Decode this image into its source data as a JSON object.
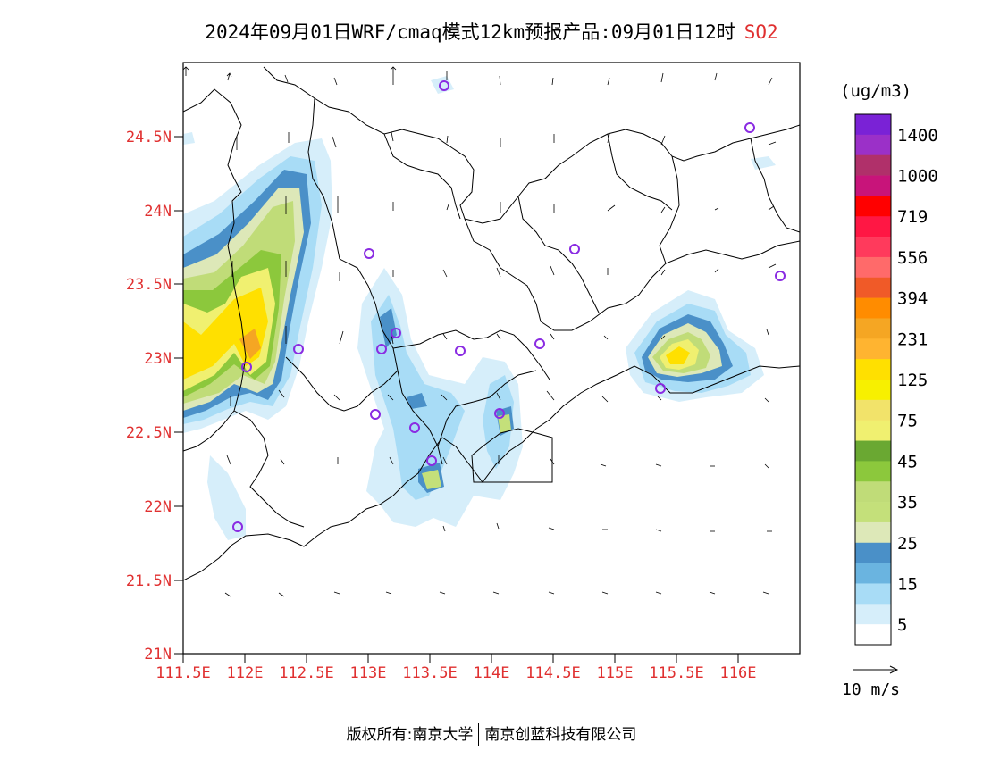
{
  "title": {
    "main": "2024年09月01日WRF/cmaq模式12km预报产品:09月01日12时",
    "pollutant": "SO2"
  },
  "map": {
    "lat_ticks": [
      "24.5N",
      "24N",
      "23.5N",
      "23N",
      "22.5N",
      "22N",
      "21.5N",
      "21N"
    ],
    "lon_ticks": [
      "111.5E",
      "112E",
      "112.5E",
      "113E",
      "113.5E",
      "114E",
      "114.5E",
      "115E",
      "115.5E",
      "116E"
    ]
  },
  "legend": {
    "unit": "(ug/m3)",
    "labels": [
      "1400",
      "1000",
      "719",
      "556",
      "394",
      "231",
      "125",
      "75",
      "45",
      "35",
      "25",
      "15",
      "5"
    ],
    "colors": [
      "#7a22d6",
      "#9b30c8",
      "#b0306a",
      "#c8147a",
      "#ff0000",
      "#ff1744",
      "#ff3a5c",
      "#ff6a6a",
      "#f05a28",
      "#ff8c00",
      "#f5a623",
      "#ffb430",
      "#ffe000",
      "#f7f000",
      "#f2e36a",
      "#f0f070",
      "#6aa832",
      "#8cc83c",
      "#c0dc78",
      "#c4e07a",
      "#dde8b8",
      "#4a90c8",
      "#6ab4e0",
      "#a8dcf6",
      "#d6eefa",
      "#ffffff"
    ],
    "wind_scale": "10 m/s"
  },
  "footer": {
    "left": "版权所有:南京大学",
    "right": "南京创蓝科技有限公司"
  }
}
